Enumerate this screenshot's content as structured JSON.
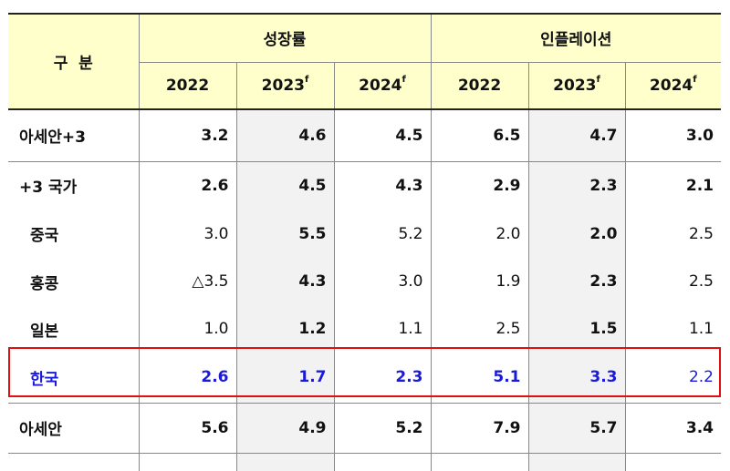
{
  "header": {
    "category": "구  분",
    "growth": "성장률",
    "inflation": "인플레이션",
    "years": [
      {
        "year": "2022",
        "sup": ""
      },
      {
        "year": "2023",
        "sup": "f"
      },
      {
        "year": "2024",
        "sup": "f"
      }
    ]
  },
  "rows": [
    {
      "label": "아세안+3",
      "g2022": "3.2",
      "g2023": "4.6",
      "g2024": "4.5",
      "i2022": "6.5",
      "i2023": "4.7",
      "i2024": "3.0"
    },
    {
      "label": "+3 국가",
      "g2022": "2.6",
      "g2023": "4.5",
      "g2024": "4.3",
      "i2022": "2.9",
      "i2023": "2.3",
      "i2024": "2.1"
    },
    {
      "label": "중국",
      "g2022": "3.0",
      "g2023": "5.5",
      "g2024": "5.2",
      "i2022": "2.0",
      "i2023": "2.0",
      "i2024": "2.5"
    },
    {
      "label": "홍콩",
      "g2022": "△3.5",
      "g2023": "4.3",
      "g2024": "3.0",
      "i2022": "1.9",
      "i2023": "2.3",
      "i2024": "2.5"
    },
    {
      "label": "일본",
      "g2022": "1.0",
      "g2023": "1.2",
      "g2024": "1.1",
      "i2022": "2.5",
      "i2023": "1.5",
      "i2024": "1.1"
    },
    {
      "label": "한국",
      "g2022": "2.6",
      "g2023": "1.7",
      "g2024": "2.3",
      "i2022": "5.1",
      "i2023": "3.3",
      "i2024": "2.2"
    },
    {
      "label": "아세안",
      "g2022": "5.6",
      "g2023": "4.9",
      "g2024": "5.2",
      "i2022": "7.9",
      "i2023": "5.7",
      "i2024": "3.4"
    }
  ],
  "colors": {
    "header_bg": "#ffffcc",
    "shade_bg": "#f2f2f2",
    "highlight_border": "#e01010",
    "highlight_text": "#1a1adb"
  }
}
